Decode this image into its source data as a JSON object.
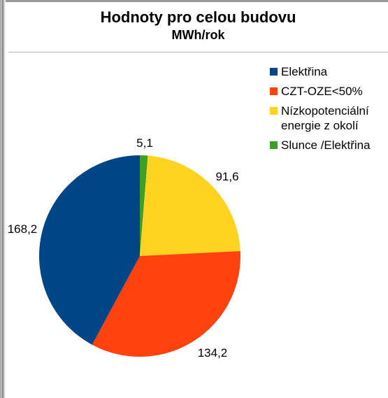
{
  "chart_data": {
    "type": "pie",
    "title": "Hodnoty pro celou budovu",
    "subtitle": "MWh/rok",
    "categories": [
      "Slunce /Elektřina",
      "Nízkopotenciální energie z okolí",
      "CZT-OZE<50%",
      "Elektřina"
    ],
    "values": [
      5.1,
      91.6,
      134.2,
      168.2
    ],
    "value_labels": [
      "5,1",
      "91,6",
      "134,2",
      "168,2"
    ],
    "colors": [
      "#3f9e26",
      "#ffd320",
      "#ff420e",
      "#004586"
    ],
    "legend": {
      "placement": "right",
      "entries": [
        {
          "label": "Elektřina",
          "color": "#004586"
        },
        {
          "label": "CZT-OZE<50%",
          "color": "#ff420e"
        },
        {
          "label": "Nízkopotenciální energie z okolí",
          "color": "#ffd320"
        },
        {
          "label": "Slunce /Elektřina",
          "color": "#3f9e26"
        }
      ]
    },
    "start_angle": "12 o'clock",
    "direction": "clockwise"
  }
}
